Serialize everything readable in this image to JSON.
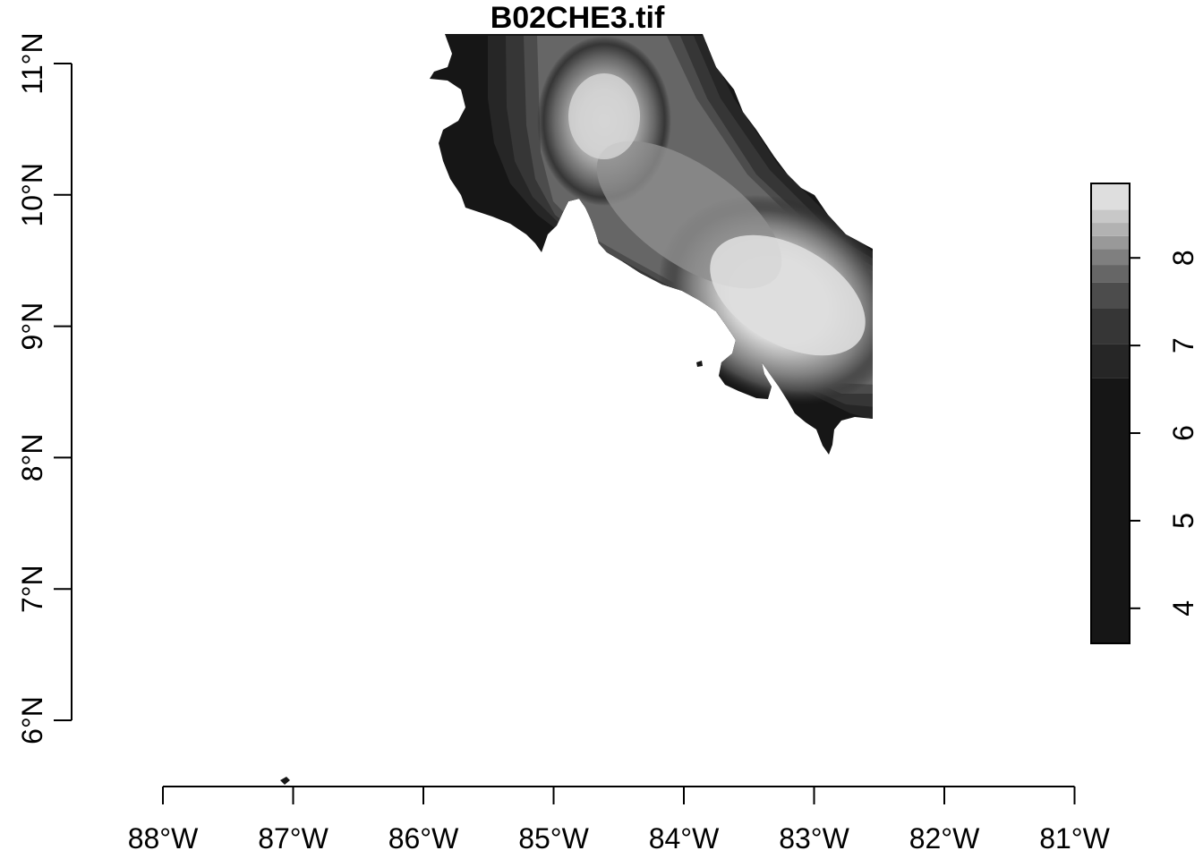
{
  "title": "B02CHE3.tif",
  "x_axis": {
    "ticks": [
      {
        "value": -88,
        "label": "88°W"
      },
      {
        "value": -87,
        "label": "87°W"
      },
      {
        "value": -86,
        "label": "86°W"
      },
      {
        "value": -85,
        "label": "85°W"
      },
      {
        "value": -84,
        "label": "84°W"
      },
      {
        "value": -83,
        "label": "83°W"
      },
      {
        "value": -82,
        "label": "82°W"
      },
      {
        "value": -81,
        "label": "81°W"
      }
    ]
  },
  "y_axis": {
    "ticks": [
      {
        "value": 6,
        "label": "6°N"
      },
      {
        "value": 7,
        "label": "7°N"
      },
      {
        "value": 8,
        "label": "8°N"
      },
      {
        "value": 9,
        "label": "9°N"
      },
      {
        "value": 10,
        "label": "10°N"
      },
      {
        "value": 11,
        "label": "11°N"
      }
    ]
  },
  "legend": {
    "position": "right",
    "range": [
      3.6,
      8.85
    ],
    "ticks": [
      {
        "value": 4,
        "label": "4"
      },
      {
        "value": 5,
        "label": "5"
      },
      {
        "value": 6,
        "label": "6"
      },
      {
        "value": 7,
        "label": "7"
      },
      {
        "value": 8,
        "label": "8"
      }
    ],
    "bands": [
      {
        "from": 3.6,
        "to": 6.63,
        "color": "#161616"
      },
      {
        "from": 6.63,
        "to": 7.02,
        "color": "#262626"
      },
      {
        "from": 7.02,
        "to": 7.42,
        "color": "#363636"
      },
      {
        "from": 7.42,
        "to": 7.72,
        "color": "#4c4c4c"
      },
      {
        "from": 7.72,
        "to": 7.92,
        "color": "#666666"
      },
      {
        "from": 7.92,
        "to": 8.1,
        "color": "#7f7f7f"
      },
      {
        "from": 8.1,
        "to": 8.25,
        "color": "#999999"
      },
      {
        "from": 8.25,
        "to": 8.4,
        "color": "#b2b2b2"
      },
      {
        "from": 8.4,
        "to": 8.55,
        "color": "#c8c8c8"
      },
      {
        "from": 8.55,
        "to": 8.85,
        "color": "#dedede"
      }
    ]
  },
  "raster": {
    "extent_lon": [
      -85.9,
      -82.55
    ],
    "extent_lat": [
      8.05,
      11.2
    ],
    "hotspots": [
      {
        "lon": -84.6,
        "lat": 10.55,
        "value": 8.8
      },
      {
        "lon": -83.2,
        "lat": 9.2,
        "value": 8.9
      }
    ]
  }
}
